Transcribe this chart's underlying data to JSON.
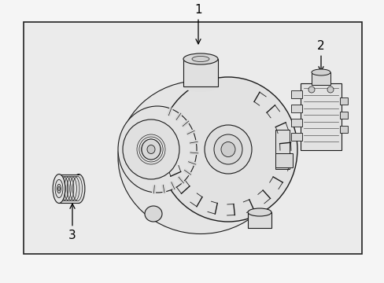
{
  "bg_outer": "#f5f5f5",
  "bg_inner": "#e8e8e8",
  "box_color": "#222222",
  "line_color": "#1a1a1a",
  "label_1": "1",
  "label_2": "2",
  "label_3": "3",
  "font_size": 11,
  "fig_w": 4.89,
  "fig_h": 3.6,
  "dpi": 100
}
